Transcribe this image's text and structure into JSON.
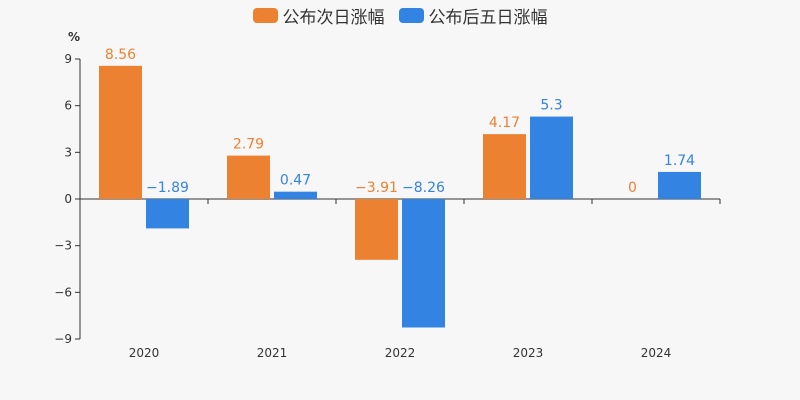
{
  "chart_data": {
    "type": "bar",
    "title": "",
    "xlabel": "",
    "ylabel": "%",
    "categories": [
      "2020",
      "2021",
      "2022",
      "2023",
      "2024"
    ],
    "ylim": [
      -9,
      9
    ],
    "yticks": [
      9,
      6,
      3,
      0,
      -3,
      -6,
      -9
    ],
    "ytick_labels": [
      "9",
      "6",
      "3",
      "0",
      "−3",
      "−6",
      "−9"
    ],
    "legend_position": "top-center",
    "grid": false,
    "series": [
      {
        "name": "公布次日涨幅",
        "color": "#ed8132",
        "values": [
          8.56,
          2.79,
          -3.91,
          4.17,
          0
        ],
        "labels": [
          "8.56",
          "2.79",
          "−3.91",
          "4.17",
          "0"
        ]
      },
      {
        "name": "公布后五日涨幅",
        "color": "#3383e3",
        "values": [
          -1.89,
          0.47,
          -8.26,
          5.3,
          1.74
        ],
        "labels": [
          "−1.89",
          "0.47",
          "−8.26",
          "5.3",
          "1.74"
        ]
      }
    ]
  }
}
